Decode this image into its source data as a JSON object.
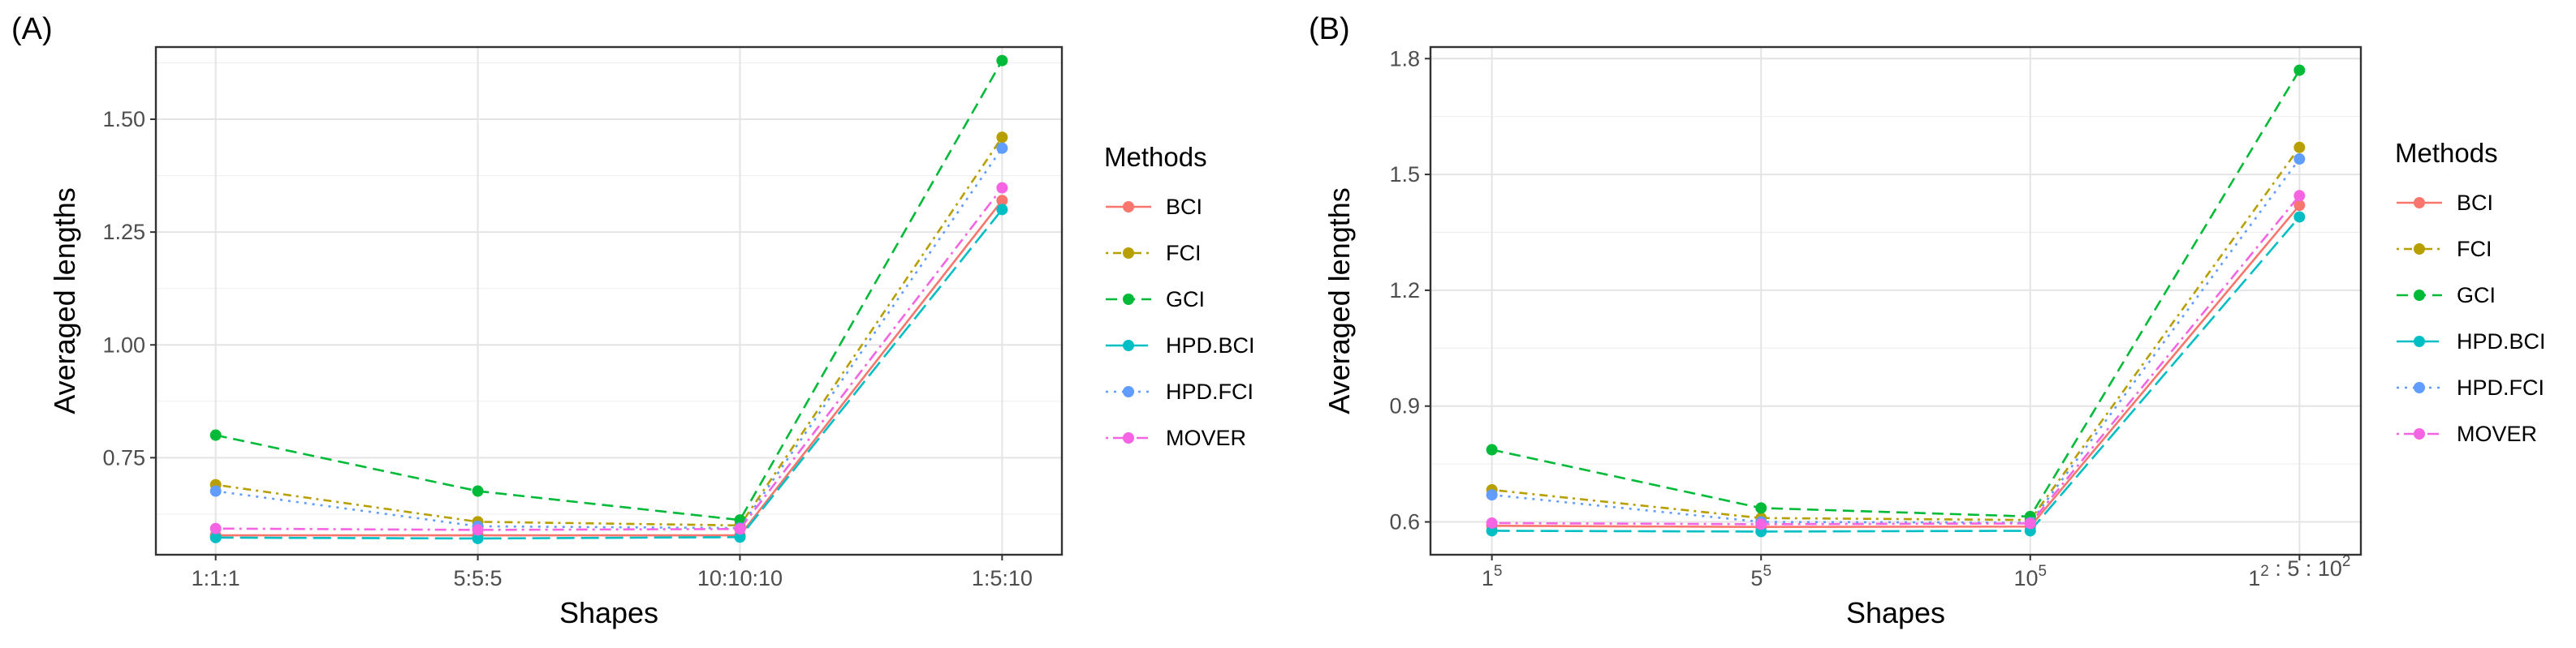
{
  "chart_data": [
    {
      "id": "A",
      "type": "line",
      "panel_label": "(A)",
      "xlabel": "Shapes",
      "ylabel": "Averaged lengths",
      "categories": [
        "1:1:1",
        "5:5:5",
        "10:10:10",
        "1:5:10"
      ],
      "yticks": [
        0.75,
        1.0,
        1.25,
        1.5
      ],
      "ytick_labels": [
        "0.75",
        "1.00",
        "1.25",
        "1.50"
      ],
      "ylim": [
        0.535,
        1.66
      ],
      "grid": true,
      "legend_title": "Methods",
      "legend_position": "right",
      "series": [
        {
          "name": "BCI",
          "values": [
            0.578,
            0.578,
            0.578,
            1.32
          ]
        },
        {
          "name": "FCI",
          "values": [
            0.69,
            0.608,
            0.6,
            1.46
          ]
        },
        {
          "name": "GCI",
          "values": [
            0.8,
            0.676,
            0.612,
            1.63
          ]
        },
        {
          "name": "HPD.BCI",
          "values": [
            0.573,
            0.571,
            0.574,
            1.3
          ]
        },
        {
          "name": "HPD.FCI",
          "values": [
            0.676,
            0.598,
            0.594,
            1.436
          ]
        },
        {
          "name": "MOVER",
          "values": [
            0.593,
            0.59,
            0.592,
            1.348
          ]
        }
      ]
    },
    {
      "id": "B",
      "type": "line",
      "panel_label": "(B)",
      "xlabel": "Shapes",
      "ylabel": "Averaged lengths",
      "categories": [
        "1^5",
        "5^5",
        "10^5",
        "1^2 : 5 : 10^2"
      ],
      "yticks": [
        0.6,
        0.9,
        1.2,
        1.5,
        1.8
      ],
      "ytick_labels": [
        "0.6",
        "0.9",
        "1.2",
        "1.5",
        "1.8"
      ],
      "ylim": [
        0.515,
        1.83
      ],
      "grid": true,
      "legend_title": "Methods",
      "legend_position": "right",
      "series": [
        {
          "name": "BCI",
          "values": [
            0.59,
            0.587,
            0.588,
            1.42
          ]
        },
        {
          "name": "FCI",
          "values": [
            0.683,
            0.61,
            0.605,
            1.57
          ]
        },
        {
          "name": "GCI",
          "values": [
            0.787,
            0.636,
            0.614,
            1.77
          ]
        },
        {
          "name": "HPD.BCI",
          "values": [
            0.577,
            0.575,
            0.577,
            1.39
          ]
        },
        {
          "name": "HPD.FCI",
          "values": [
            0.67,
            0.6,
            0.598,
            1.54
          ]
        },
        {
          "name": "MOVER",
          "values": [
            0.597,
            0.594,
            0.596,
            1.445
          ]
        }
      ]
    }
  ],
  "methods_style": [
    {
      "name": "BCI",
      "color": "#F8766D",
      "dash": "solid"
    },
    {
      "name": "FCI",
      "color": "#B79F00",
      "dash": "dotted-dashed"
    },
    {
      "name": "GCI",
      "color": "#00BA38",
      "dash": "dashed"
    },
    {
      "name": "HPD.BCI",
      "color": "#00BFC4",
      "dash": "long-dashed"
    },
    {
      "name": "HPD.FCI",
      "color": "#619CFF",
      "dash": "dotted"
    },
    {
      "name": "MOVER",
      "color": "#F564E3",
      "dash": "dot-dash"
    }
  ]
}
